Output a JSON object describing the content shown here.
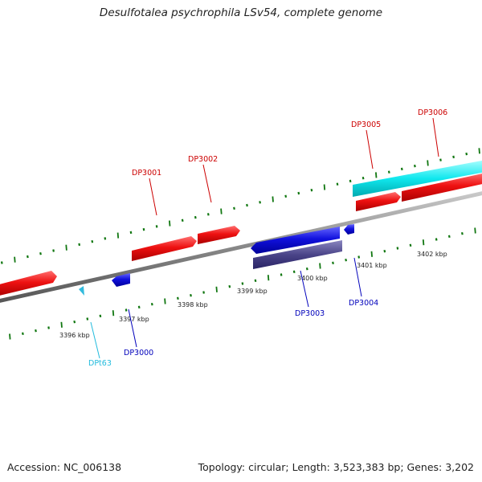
{
  "header": {
    "title": "Desulfotalea psychrophila LSv54, complete genome"
  },
  "footer": {
    "accession": "Accession: NC_006138",
    "summary": "Topology: circular; Length: 3,523,383 bp; Genes: 3,202"
  },
  "colors": {
    "forward_cds": "#ee1111",
    "reverse_cds": "#1111dd",
    "forward_rna": "#11e8ee",
    "reverse_rna": "#33bbdd",
    "reverse_other": "#4a4488",
    "backbone": "#888888",
    "ticks": "#117711",
    "label_forward": "#cc0000",
    "label_reverse": "#0000bb",
    "label_rna": "#22bbdd"
  },
  "tick_labels": [
    "3396 kbp",
    "3397 kbp",
    "3398 kbp",
    "3399 kbp",
    "3400 kbp",
    "3401 kbp",
    "3402 kbp"
  ],
  "gene_labels": [
    {
      "id": "DP3001",
      "strand": "forward"
    },
    {
      "id": "DP3002",
      "strand": "forward"
    },
    {
      "id": "DP3005",
      "strand": "forward"
    },
    {
      "id": "DP3006",
      "strand": "forward"
    },
    {
      "id": "DP3003",
      "strand": "reverse"
    },
    {
      "id": "DP3004",
      "strand": "reverse"
    },
    {
      "id": "DP3000",
      "strand": "reverse"
    },
    {
      "id": "DPt63",
      "strand": "rna"
    }
  ]
}
